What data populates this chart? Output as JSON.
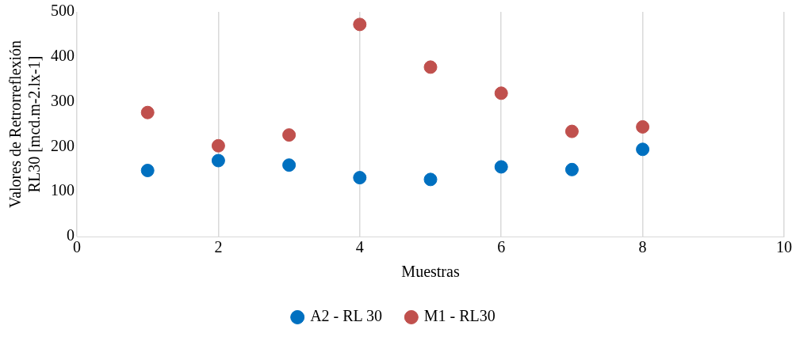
{
  "chart_data": {
    "type": "scatter",
    "xlabel": "Muestras",
    "ylabel": "Valores de Retrorreflexión RL30 [mcd.m-2.lx-1]",
    "x": [
      1,
      2,
      3,
      4,
      5,
      6,
      7,
      8
    ],
    "series": [
      {
        "name": "A2 - RL 30",
        "color": "#0070c0",
        "values": [
          147,
          169,
          159,
          131,
          127,
          155,
          149,
          194
        ]
      },
      {
        "name": "M1 - RL30",
        "color": "#c0504d",
        "values": [
          276,
          202,
          226,
          472,
          377,
          319,
          234,
          244
        ]
      }
    ],
    "xlim": [
      0,
      10
    ],
    "xticks": [
      0,
      2,
      4,
      6,
      8,
      10
    ],
    "ylim": [
      0,
      500
    ],
    "yticks": [
      0,
      100,
      200,
      300,
      400,
      500
    ],
    "grid": "x",
    "legend": "bottom",
    "marker": "circle"
  }
}
